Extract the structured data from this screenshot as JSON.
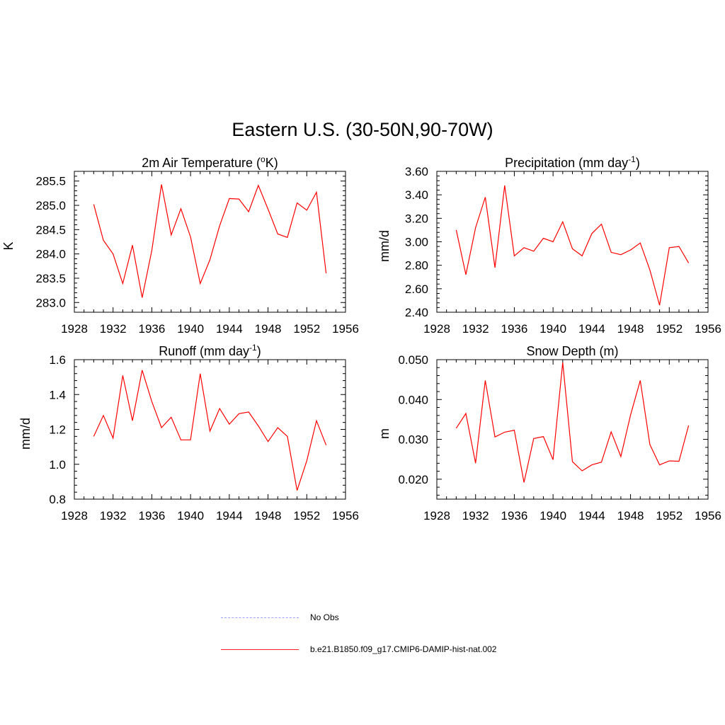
{
  "title": "Eastern U.S. (30-50N,90-70W)",
  "series_color": "#ff0000",
  "legend": [
    {
      "label": "No Obs",
      "style": "dashed",
      "color": "#9aa0ff"
    },
    {
      "label": "b.e21.B1850.f09_g17.CMIP6-DAMIP-hist-nat.002",
      "style": "solid",
      "color": "#ff2020"
    }
  ],
  "chart_data": [
    {
      "type": "line",
      "title": "2m Air Temperature (°K)",
      "title_parts": [
        "2m Air Temperature (",
        "o",
        "K)"
      ],
      "ylabel": "K",
      "xlim": [
        1928,
        1956
      ],
      "xticks": [
        1928,
        1932,
        1936,
        1940,
        1944,
        1948,
        1952,
        1956
      ],
      "ylim": [
        282.8,
        285.7
      ],
      "yticks": [
        283.0,
        283.5,
        284.0,
        284.5,
        285.0,
        285.5
      ],
      "ytick_labels": [
        "283.0",
        "283.5",
        "284.0",
        "284.5",
        "285.0",
        "285.5"
      ],
      "x": [
        1930,
        1931,
        1932,
        1933,
        1934,
        1935,
        1936,
        1937,
        1938,
        1939,
        1940,
        1941,
        1942,
        1943,
        1944,
        1945,
        1946,
        1947,
        1948,
        1949,
        1950,
        1951,
        1952,
        1953,
        1954
      ],
      "values": [
        285.02,
        284.28,
        284.0,
        283.39,
        284.18,
        283.1,
        284.07,
        285.43,
        284.39,
        284.93,
        284.35,
        283.39,
        283.88,
        284.58,
        285.14,
        285.13,
        284.87,
        285.41,
        284.92,
        284.41,
        284.34,
        285.05,
        284.9,
        285.27,
        283.6
      ]
    },
    {
      "type": "line",
      "title": "Precipitation (mm day-1)",
      "title_parts": [
        "Precipitation (mm day",
        "-1",
        ")"
      ],
      "ylabel": "mm/d",
      "xlim": [
        1928,
        1956
      ],
      "xticks": [
        1928,
        1932,
        1936,
        1940,
        1944,
        1948,
        1952,
        1956
      ],
      "ylim": [
        2.4,
        3.6
      ],
      "yticks": [
        2.4,
        2.6,
        2.8,
        3.0,
        3.2,
        3.4,
        3.6
      ],
      "ytick_labels": [
        "2.40",
        "2.60",
        "2.80",
        "3.00",
        "3.20",
        "3.40",
        "3.60"
      ],
      "x": [
        1930,
        1931,
        1932,
        1933,
        1934,
        1935,
        1936,
        1937,
        1938,
        1939,
        1940,
        1941,
        1942,
        1943,
        1944,
        1945,
        1946,
        1947,
        1948,
        1949,
        1950,
        1951,
        1952,
        1953,
        1954
      ],
      "values": [
        3.1,
        2.72,
        3.12,
        3.38,
        2.78,
        3.48,
        2.88,
        2.95,
        2.92,
        3.03,
        3.0,
        3.17,
        2.94,
        2.88,
        3.07,
        3.15,
        2.91,
        2.89,
        2.93,
        2.99,
        2.76,
        2.46,
        2.95,
        2.96,
        2.82
      ]
    },
    {
      "type": "line",
      "title": "Runoff (mm day-1)",
      "title_parts": [
        "Runoff (mm day",
        "-1",
        ")"
      ],
      "ylabel": "mm/d",
      "xlim": [
        1928,
        1956
      ],
      "xticks": [
        1928,
        1932,
        1936,
        1940,
        1944,
        1948,
        1952,
        1956
      ],
      "ylim": [
        0.8,
        1.6
      ],
      "yticks": [
        0.8,
        1.0,
        1.2,
        1.4,
        1.6
      ],
      "ytick_labels": [
        "0.8",
        "1.0",
        "1.2",
        "1.4",
        "1.6"
      ],
      "x": [
        1930,
        1931,
        1932,
        1933,
        1934,
        1935,
        1936,
        1937,
        1938,
        1939,
        1940,
        1941,
        1942,
        1943,
        1944,
        1945,
        1946,
        1947,
        1948,
        1949,
        1950,
        1951,
        1952,
        1953,
        1954
      ],
      "values": [
        1.16,
        1.28,
        1.15,
        1.51,
        1.25,
        1.54,
        1.36,
        1.21,
        1.27,
        1.14,
        1.14,
        1.52,
        1.19,
        1.32,
        1.23,
        1.29,
        1.3,
        1.22,
        1.13,
        1.21,
        1.16,
        0.85,
        1.02,
        1.25,
        1.11
      ]
    },
    {
      "type": "line",
      "title": "Snow Depth (m)",
      "title_parts": [
        "Snow Depth (m)",
        "",
        ""
      ],
      "ylabel": "m",
      "xlim": [
        1928,
        1956
      ],
      "xticks": [
        1928,
        1932,
        1936,
        1940,
        1944,
        1948,
        1952,
        1956
      ],
      "ylim": [
        0.015,
        0.05
      ],
      "yticks": [
        0.02,
        0.03,
        0.04,
        0.05
      ],
      "ytick_labels": [
        "0.020",
        "0.030",
        "0.040",
        "0.050"
      ],
      "x": [
        1930,
        1931,
        1932,
        1933,
        1934,
        1935,
        1936,
        1937,
        1938,
        1939,
        1940,
        1941,
        1942,
        1943,
        1944,
        1945,
        1946,
        1947,
        1948,
        1949,
        1950,
        1951,
        1952,
        1953,
        1954
      ],
      "values": [
        0.0328,
        0.0365,
        0.024,
        0.0448,
        0.0306,
        0.0318,
        0.0323,
        0.0192,
        0.0302,
        0.0307,
        0.0249,
        0.0493,
        0.0244,
        0.0221,
        0.0236,
        0.0243,
        0.0319,
        0.0257,
        0.0361,
        0.0448,
        0.0287,
        0.0236,
        0.0246,
        0.0245,
        0.0335
      ]
    }
  ]
}
